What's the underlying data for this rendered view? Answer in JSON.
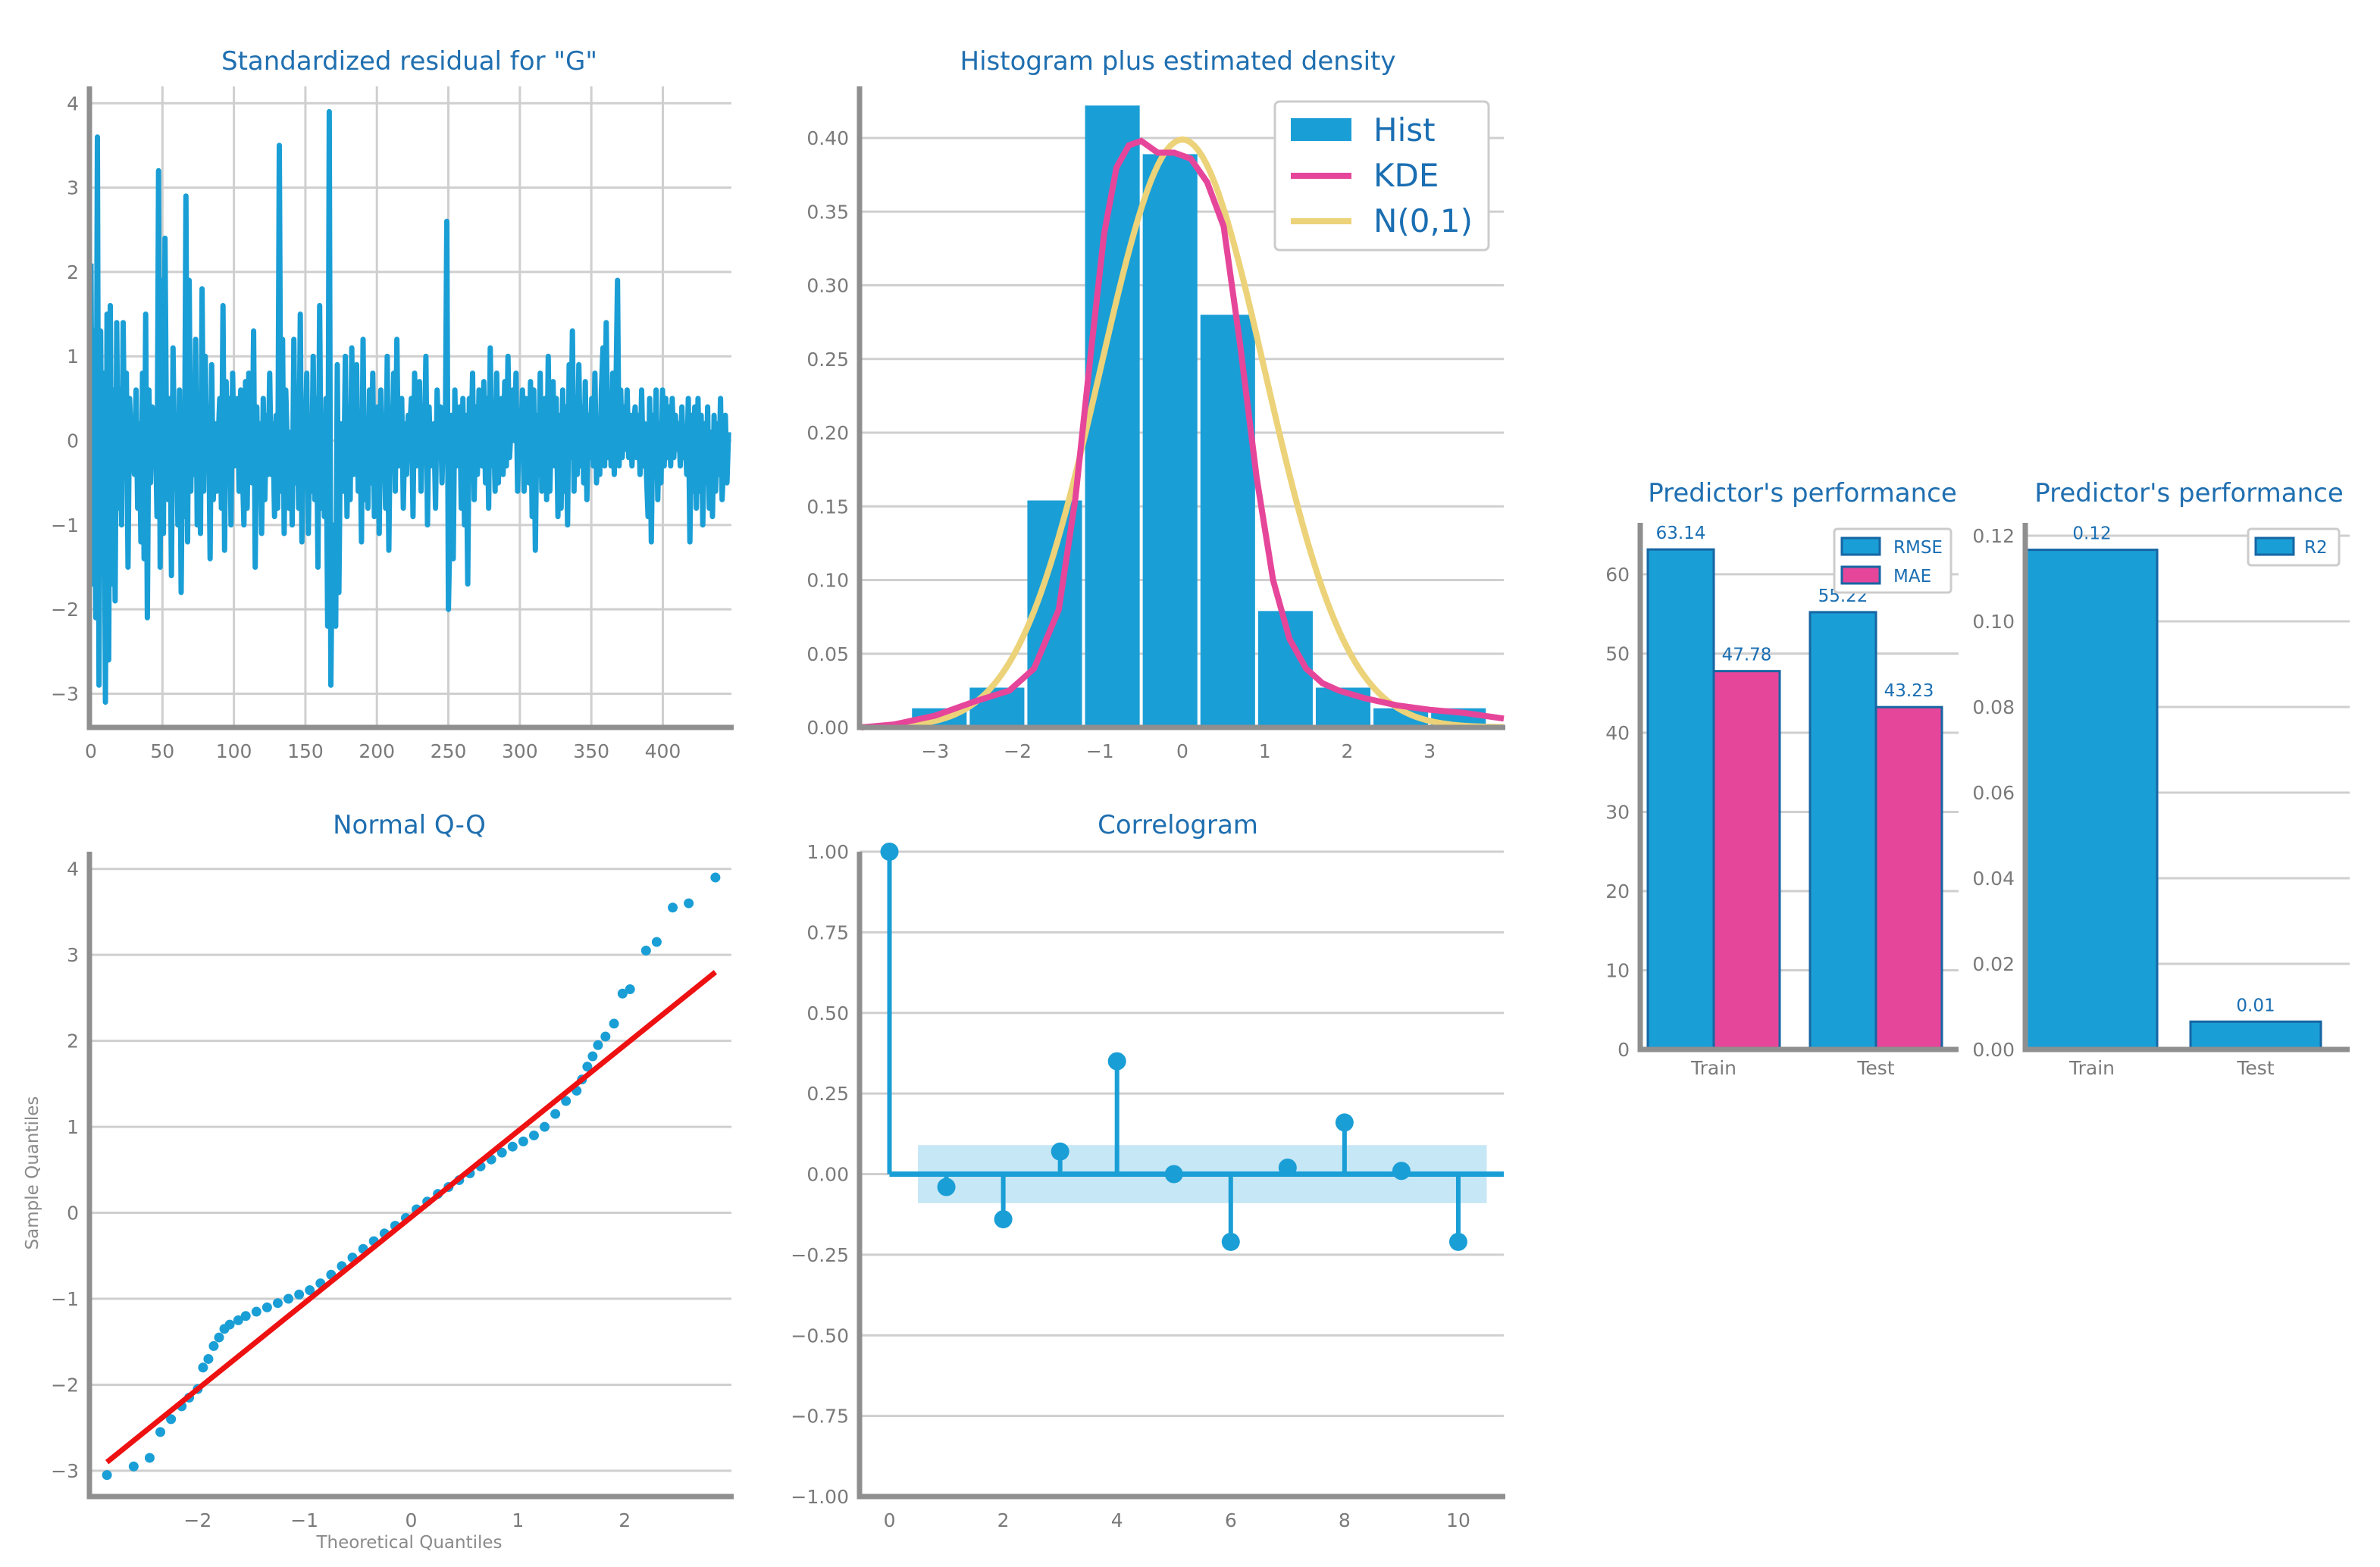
{
  "colors": {
    "blue": "#1a9ed6",
    "blue_edge": "#1666a3",
    "pink": "#e6469a",
    "yellow": "#ecd278",
    "red": "#ee1111",
    "title": "#1f6fb0"
  },
  "chart_data": [
    {
      "type": "line",
      "title": "Standardized residual for \"G\"",
      "xticks": [
        "0",
        "50",
        "100",
        "150",
        "200",
        "250",
        "300",
        "350",
        "400"
      ],
      "yticks": [
        "−3",
        "−2",
        "−1",
        "0",
        "1",
        "2",
        "3",
        "4"
      ],
      "xlim": [
        0,
        448
      ],
      "ylim": [
        -3.4,
        4.2
      ],
      "grid": true,
      "y": [
        2.1,
        -1.7,
        1.3,
        -2.1,
        3.6,
        -2.9,
        1.3,
        -1.2,
        0.8,
        -3.1,
        1.5,
        -2.6,
        1.6,
        -1.7,
        0.6,
        -1.9,
        1.4,
        -0.8,
        0.6,
        -1.0,
        1.4,
        -0.4,
        0.8,
        -1.5,
        0.5,
        0.0,
        -0.2,
        -0.4,
        0.6,
        -0.8,
        0.2,
        -1.2,
        0.8,
        -1.4,
        1.5,
        -2.1,
        0.6,
        -0.5,
        0.4,
        -0.3,
        0.2,
        -0.9,
        3.2,
        -1.5,
        1.9,
        -1.1,
        2.4,
        -0.2,
        -0.7,
        0.5,
        -1.6,
        1.1,
        -0.4,
        0.3,
        -1.0,
        0.6,
        -1.8,
        0.2,
        -0.9,
        2.9,
        -1.2,
        1.9,
        -0.6,
        0.4,
        -0.4,
        1.2,
        -1.0,
        0.2,
        -1.1,
        1.8,
        -0.6,
        1.0,
        -0.3,
        0.4,
        -1.4,
        0.9,
        -0.7,
        0.2,
        -0.6,
        0.0,
        0.5,
        -0.8,
        1.6,
        -1.3,
        0.7,
        -0.3,
        0.5,
        -1.0,
        0.8,
        -0.3,
        0.0,
        0.5,
        -0.6,
        0.6,
        -0.3,
        -1.0,
        0.7,
        -0.8,
        0.8,
        -0.1,
        -0.5,
        1.3,
        -1.5,
        0.4,
        -0.6,
        0.2,
        -1.1,
        0.5,
        -0.7,
        0.3,
        -0.4,
        0.8,
        -0.4,
        0.2,
        -0.9,
        0.3,
        -0.8,
        3.5,
        -0.6,
        1.2,
        -1.1,
        0.6,
        -0.1,
        -0.8,
        0.1,
        -1.0,
        1.2,
        -0.5,
        0.3,
        -0.8,
        1.5,
        -1.2,
        0.3,
        -0.2,
        0.8,
        -1.1,
        0.2,
        -0.6,
        1.0,
        -0.7,
        0.5,
        -1.5,
        1.6,
        -0.8,
        0.3,
        -0.9,
        0.5,
        -2.2,
        3.9,
        -2.9,
        -1.0,
        -2.1,
        -2.2,
        0.9,
        -1.8,
        0.2,
        -0.2,
        -0.6,
        1.0,
        -0.9,
        0.4,
        -0.7,
        1.1,
        -0.4,
        0.2,
        0.9,
        -0.6,
        0.3,
        -1.2,
        1.2,
        -0.7,
        0.1,
        -0.8,
        0.6,
        -0.5,
        0.8,
        -0.9,
        0.1,
        0.4,
        -1.1,
        0.6,
        -0.3,
        0.2,
        -0.8,
        1.0,
        -1.3,
        0.4,
        -0.2,
        0.8,
        -0.6,
        1.2,
        -0.3,
        0.0,
        0.5,
        -0.8,
        0.2,
        -0.4,
        0.3,
        0.1,
        0.5,
        -0.9,
        0.8,
        -0.3,
        0.0,
        0.7,
        -0.6,
        0.3,
        -0.2,
        1.0,
        -1.0,
        0.4,
        -0.3,
        0.1,
        0.2,
        -0.8,
        0.6,
        -0.1,
        0.4,
        -0.5,
        0.2,
        -0.2,
        2.6,
        -2.0,
        -1.0,
        0.3,
        -1.4,
        0.6,
        -0.3,
        0.0,
        0.4,
        -0.8,
        0.5,
        -1.0,
        0.3,
        -1.7,
        0.5,
        -0.2,
        0.8,
        -0.7,
        0.4,
        -0.4,
        0.6,
        -0.1,
        -0.3,
        0.7,
        -0.5,
        0.5,
        -0.8,
        1.1,
        -0.3,
        0.2,
        -0.6,
        0.8,
        -0.5,
        0.3,
        0.5,
        -0.4,
        0.7,
        -0.3,
        1.0,
        -0.2,
        0.2,
        0.6,
        0.0,
        0.8,
        -0.6,
        0.3,
        0.0,
        0.6,
        -0.6,
        0.5,
        -0.2,
        -0.5,
        0.7,
        -0.9,
        0.6,
        -1.3,
        0.3,
        -0.4,
        0.8,
        -0.6,
        0.2,
        0.5,
        -0.7,
        1.0,
        -0.6,
        0.2,
        0.7,
        -0.3,
        0.5,
        -0.9,
        0.3,
        -0.8,
        0.6,
        -0.6,
        0.4,
        -1.0,
        0.9,
        -0.2,
        1.3,
        -0.6,
        0.5,
        -0.4,
        0.9,
        -0.3,
        0.4,
        -0.5,
        0.7,
        -0.7,
        0.3,
        -0.2,
        0.5,
        -0.3,
        0.8,
        -0.5,
        0.2,
        -0.4,
        0.6,
        1.1,
        -0.3,
        1.4,
        -0.2,
        0.5,
        -0.3,
        0.8,
        -0.4,
        0.5,
        1.9,
        -0.3,
        0.6,
        -0.2,
        0.4,
        -0.1,
        0.6,
        -0.2,
        0.3,
        -0.3,
        0.2,
        0.4,
        -0.2,
        0.3,
        -0.4,
        0.6,
        -0.3,
        0.2,
        -0.4,
        -0.9,
        0.5,
        -1.2,
        0.3,
        -0.4,
        0.6,
        -0.7,
        0.2,
        -0.5,
        0.6,
        -0.3,
        0.5,
        -0.2,
        0.4,
        -0.3,
        0.5,
        -0.2,
        0.3,
        -0.1,
        0.2,
        -0.3,
        0.4,
        -0.2,
        0.1,
        -0.4,
        0.5,
        -1.2,
        0.3,
        -0.6,
        0.4,
        -0.8,
        0.5,
        -0.6,
        0.3,
        -1.0,
        0.2,
        -0.5,
        0.4,
        -0.8,
        0.1,
        -0.9,
        0.3,
        -0.6,
        0.2,
        -0.4,
        0.5,
        -0.7,
        -0.2,
        0.3,
        -0.5,
        0.1
      ]
    },
    {
      "type": "bar",
      "title": "Histogram plus estimated density",
      "xticks": [
        "−3",
        "−2",
        "−1",
        "0",
        "1",
        "2",
        "3"
      ],
      "yticks": [
        "0.00",
        "0.05",
        "0.10",
        "0.15",
        "0.20",
        "0.25",
        "0.30",
        "0.35",
        "0.40"
      ],
      "xlim": [
        -3.9,
        3.9
      ],
      "ylim": [
        0,
        0.435
      ],
      "grid": true,
      "legend": [
        "Hist",
        "KDE",
        "N(0,1)"
      ],
      "legend_position": "top-right",
      "bin_edges": [
        -3.3,
        -2.6,
        -1.9,
        -1.2,
        -0.5,
        0.2,
        0.9,
        1.6,
        2.3,
        3.0,
        3.7
      ],
      "counts": [
        0.013,
        0.027,
        0.154,
        0.422,
        0.389,
        0.28,
        0.079,
        0.027,
        0.013,
        0.013
      ],
      "kde_x": [
        -3.9,
        -3.5,
        -3.0,
        -2.5,
        -2.1,
        -1.8,
        -1.5,
        -1.3,
        -1.1,
        -0.95,
        -0.8,
        -0.65,
        -0.5,
        -0.3,
        -0.1,
        0.1,
        0.3,
        0.5,
        0.7,
        0.9,
        1.1,
        1.3,
        1.5,
        1.7,
        1.9,
        2.2,
        2.6,
        3.0,
        3.4,
        3.9
      ],
      "kde_y": [
        0.0,
        0.002,
        0.008,
        0.018,
        0.025,
        0.04,
        0.08,
        0.155,
        0.26,
        0.335,
        0.38,
        0.395,
        0.398,
        0.39,
        0.39,
        0.386,
        0.37,
        0.34,
        0.26,
        0.17,
        0.1,
        0.06,
        0.04,
        0.03,
        0.025,
        0.02,
        0.015,
        0.012,
        0.01,
        0.006
      ]
    },
    {
      "type": "scatter",
      "title": "Normal Q-Q",
      "xlabel": "Theoretical Quantiles",
      "ylabel": "Sample Quantiles",
      "xticks": [
        "−2",
        "−1",
        "0",
        "1",
        "2"
      ],
      "yticks": [
        "−3",
        "−2",
        "−1",
        "0",
        "1",
        "2",
        "3",
        "4"
      ],
      "xlim": [
        -3.0,
        3.0
      ],
      "ylim": [
        -3.3,
        4.2
      ],
      "grid": true,
      "line": {
        "x": [
          -2.85,
          2.85
        ],
        "y": [
          -2.9,
          2.8
        ]
      },
      "points": [
        [
          -2.85,
          -3.05
        ],
        [
          -2.6,
          -2.95
        ],
        [
          -2.45,
          -2.85
        ],
        [
          -2.35,
          -2.55
        ],
        [
          -2.25,
          -2.4
        ],
        [
          -2.15,
          -2.25
        ],
        [
          -2.08,
          -2.15
        ],
        [
          -2.0,
          -2.05
        ],
        [
          -1.95,
          -1.8
        ],
        [
          -1.9,
          -1.7
        ],
        [
          -1.85,
          -1.55
        ],
        [
          -1.8,
          -1.45
        ],
        [
          -1.75,
          -1.35
        ],
        [
          -1.7,
          -1.3
        ],
        [
          -1.62,
          -1.25
        ],
        [
          -1.55,
          -1.2
        ],
        [
          -1.45,
          -1.15
        ],
        [
          -1.35,
          -1.1
        ],
        [
          -1.25,
          -1.05
        ],
        [
          -1.15,
          -1.0
        ],
        [
          -1.05,
          -0.95
        ],
        [
          -0.95,
          -0.9
        ],
        [
          -0.85,
          -0.82
        ],
        [
          -0.75,
          -0.72
        ],
        [
          -0.65,
          -0.62
        ],
        [
          -0.55,
          -0.52
        ],
        [
          -0.45,
          -0.42
        ],
        [
          -0.35,
          -0.33
        ],
        [
          -0.25,
          -0.24
        ],
        [
          -0.15,
          -0.15
        ],
        [
          -0.05,
          -0.06
        ],
        [
          0.05,
          0.04
        ],
        [
          0.15,
          0.13
        ],
        [
          0.25,
          0.22
        ],
        [
          0.35,
          0.3
        ],
        [
          0.45,
          0.38
        ],
        [
          0.55,
          0.46
        ],
        [
          0.65,
          0.54
        ],
        [
          0.75,
          0.62
        ],
        [
          0.85,
          0.7
        ],
        [
          0.95,
          0.77
        ],
        [
          1.05,
          0.83
        ],
        [
          1.15,
          0.9
        ],
        [
          1.25,
          1.0
        ],
        [
          1.35,
          1.15
        ],
        [
          1.45,
          1.3
        ],
        [
          1.55,
          1.42
        ],
        [
          1.6,
          1.55
        ],
        [
          1.65,
          1.7
        ],
        [
          1.7,
          1.82
        ],
        [
          1.75,
          1.95
        ],
        [
          1.82,
          2.05
        ],
        [
          1.9,
          2.2
        ],
        [
          1.98,
          2.55
        ],
        [
          2.05,
          2.6
        ],
        [
          2.2,
          3.05
        ],
        [
          2.3,
          3.15
        ],
        [
          2.45,
          3.55
        ],
        [
          2.6,
          3.6
        ],
        [
          2.85,
          3.9
        ]
      ]
    },
    {
      "type": "stem",
      "title": "Correlogram",
      "xticks": [
        "0",
        "2",
        "4",
        "6",
        "8",
        "10"
      ],
      "yticks": [
        "−1.00",
        "−0.75",
        "−0.50",
        "−0.25",
        "0.00",
        "0.25",
        "0.50",
        "0.75",
        "1.00"
      ],
      "xlim": [
        -0.5,
        10.8
      ],
      "ylim": [
        -1.0,
        1.0
      ],
      "grid": true,
      "lags": [
        0,
        1,
        2,
        3,
        4,
        5,
        6,
        7,
        8,
        9,
        10
      ],
      "acf": [
        1.0,
        -0.04,
        -0.14,
        0.07,
        0.35,
        0.0,
        -0.21,
        0.02,
        0.16,
        0.01,
        -0.21
      ],
      "conf_band": [
        -0.09,
        0.09
      ]
    },
    {
      "type": "bar",
      "title": "Predictor's performance",
      "categories": [
        "Train",
        "Test"
      ],
      "series": [
        {
          "name": "RMSE",
          "values": [
            63.14,
            55.22
          ],
          "labels": [
            "63.14",
            "55.22"
          ]
        },
        {
          "name": "MAE",
          "values": [
            47.78,
            43.23
          ],
          "labels": [
            "47.78",
            "43.23"
          ]
        }
      ],
      "yticks": [
        "0",
        "10",
        "20",
        "30",
        "40",
        "50",
        "60"
      ],
      "ylim": [
        0,
        66.5
      ],
      "grid": true,
      "legend_position": "top-right"
    },
    {
      "type": "bar",
      "title": "Predictor's performance",
      "categories": [
        "Train",
        "Test"
      ],
      "series": [
        {
          "name": "R2",
          "values": [
            0.1167,
            0.0065
          ],
          "labels": [
            "0.12",
            "0.01"
          ]
        }
      ],
      "yticks": [
        "0.00",
        "0.02",
        "0.04",
        "0.06",
        "0.08",
        "0.10",
        "0.12"
      ],
      "ylim": [
        0,
        0.123
      ],
      "grid": true,
      "legend_position": "top-right"
    }
  ]
}
